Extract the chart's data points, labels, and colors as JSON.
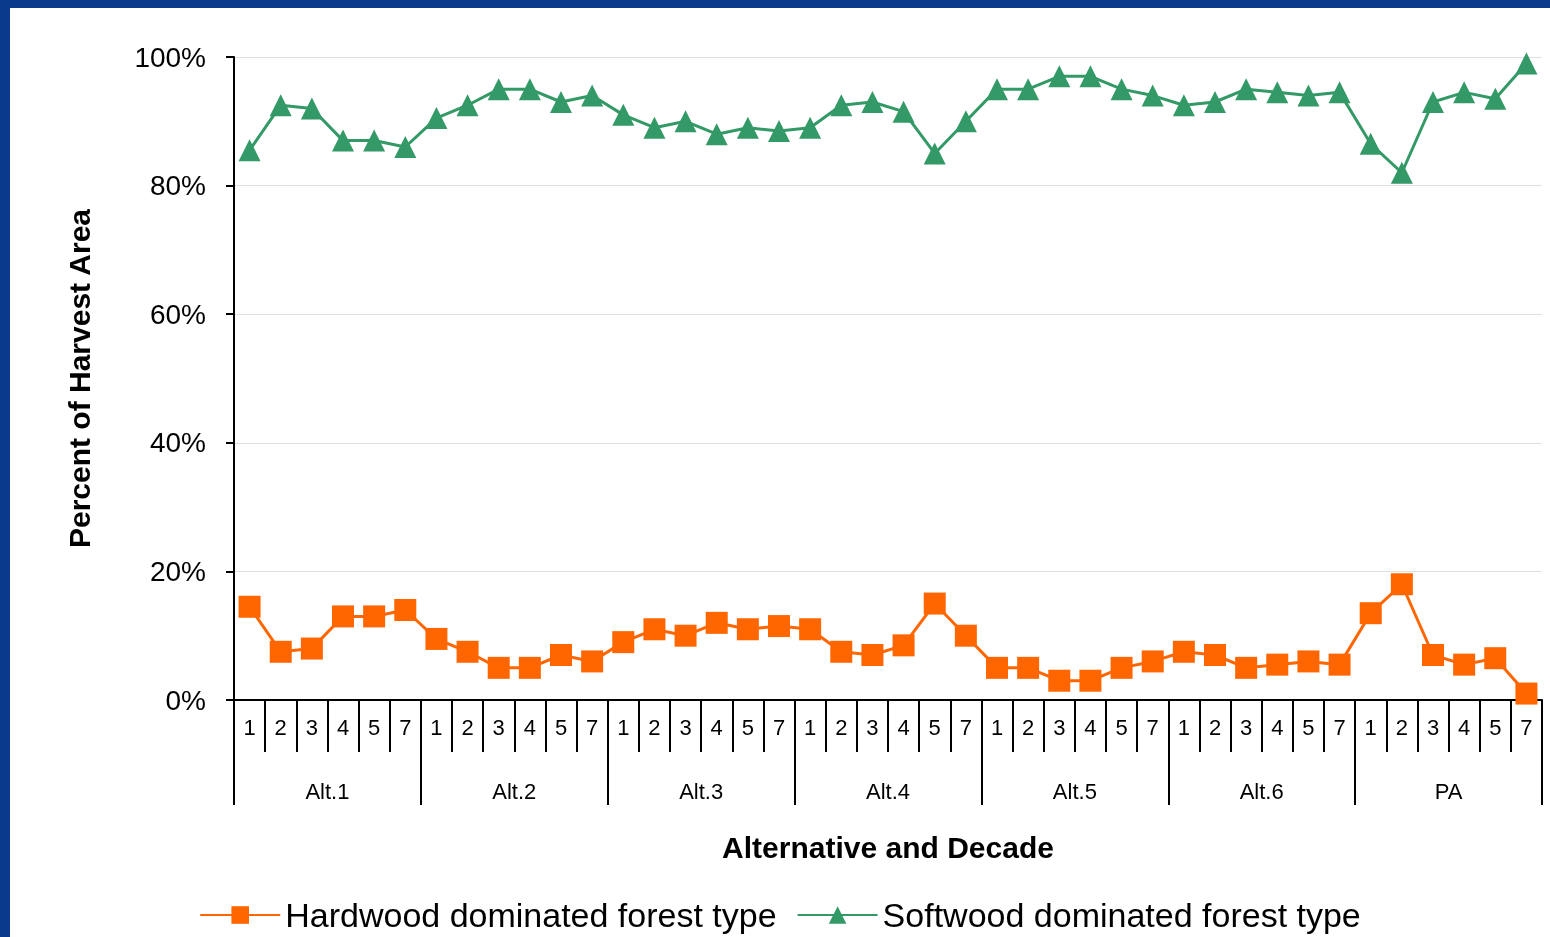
{
  "chart_data": {
    "type": "line",
    "xlabel": "Alternative and Decade",
    "ylabel": "Percent of Harvest Area",
    "categories": [
      "1",
      "2",
      "3",
      "4",
      "5",
      "7",
      "1",
      "2",
      "3",
      "4",
      "5",
      "7",
      "1",
      "2",
      "3",
      "4",
      "5",
      "7",
      "1",
      "2",
      "3",
      "4",
      "5",
      "7",
      "1",
      "2",
      "3",
      "4",
      "5",
      "7",
      "1",
      "2",
      "3",
      "4",
      "5",
      "7",
      "1",
      "2",
      "3",
      "4",
      "5",
      "7"
    ],
    "annotations": [
      "Alt.1",
      "Alt.2",
      "Alt.3",
      "Alt.4",
      "Alt.5",
      "Alt.6",
      "PA"
    ],
    "series": [
      {
        "name": "Hardwood dominated forest type",
        "color": "#ff6600",
        "marker": "square",
        "values": [
          14.5,
          7.5,
          8,
          13,
          13,
          14,
          9.5,
          7.5,
          5,
          5,
          7,
          6,
          9,
          11,
          10,
          12,
          11,
          11.5,
          11,
          7.5,
          7,
          8.5,
          15,
          10,
          5,
          5,
          3,
          3,
          5,
          6,
          7.5,
          7,
          5,
          5.5,
          6,
          5.5,
          13.5,
          18,
          7,
          5.5,
          6.5,
          1
        ]
      },
      {
        "name": "Softwood dominated forest type",
        "color": "#339966",
        "marker": "triangle",
        "values": [
          85.5,
          92.5,
          92,
          87,
          87,
          86,
          90.5,
          92.5,
          95,
          95,
          93,
          94,
          91,
          89,
          90,
          88,
          89,
          88.5,
          89,
          92.5,
          93,
          91.5,
          85,
          90,
          95,
          95,
          97,
          97,
          95,
          94,
          92.5,
          93,
          95,
          94.5,
          94,
          94.5,
          86.5,
          82,
          93,
          94.5,
          93.5,
          99
        ]
      }
    ],
    "ylim": [
      0,
      100
    ],
    "yticks": [
      {
        "value": 0,
        "label": "0%"
      },
      {
        "value": 20,
        "label": "20%"
      },
      {
        "value": 40,
        "label": "40%"
      },
      {
        "value": 60,
        "label": "60%"
      },
      {
        "value": 80,
        "label": "80%"
      },
      {
        "value": 100,
        "label": "100%"
      }
    ],
    "grid": "y",
    "legend": "bottom",
    "line_style": "solid"
  }
}
